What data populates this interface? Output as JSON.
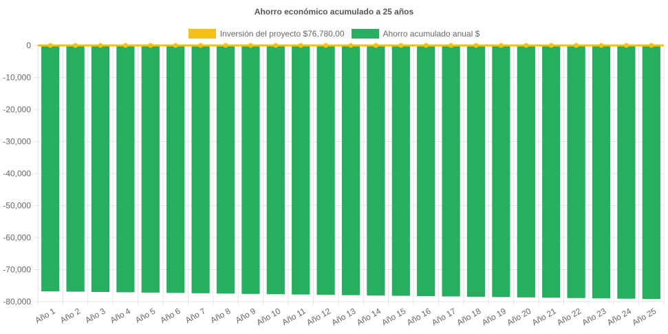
{
  "chart_data": {
    "type": "bar",
    "title": "Ahorro económico acumulado a 25 años",
    "xlabel": "",
    "ylabel": "",
    "ylim": [
      -80000,
      0
    ],
    "yticks": [
      0,
      -10000,
      -20000,
      -30000,
      -40000,
      -50000,
      -60000,
      -70000,
      -80000
    ],
    "ytick_labels": [
      "0",
      "-10,000",
      "-20,000",
      "-30,000",
      "-40,000",
      "-50,000",
      "-60,000",
      "-70,000",
      "-80,000"
    ],
    "grid": true,
    "legend_position": "top-center",
    "categories": [
      "Año 1",
      "Año 2",
      "Año 3",
      "Año 4",
      "Año 5",
      "Año 6",
      "Año 7",
      "Año 8",
      "Año 9",
      "Año 10",
      "Año 11",
      "Año 12",
      "Año 13",
      "Año 14",
      "Año 15",
      "Año 16",
      "Año 17",
      "Año 18",
      "Año 19",
      "Año 20",
      "Año 21",
      "Año 22",
      "Año 23",
      "Año 24",
      "Año 25"
    ],
    "series": [
      {
        "name": "Inversión del proyecto $76,780.00",
        "type": "line",
        "color": "#f5c010",
        "values": [
          0,
          0,
          0,
          0,
          0,
          0,
          0,
          0,
          0,
          0,
          0,
          0,
          0,
          0,
          0,
          0,
          0,
          0,
          0,
          0,
          0,
          0,
          0,
          0,
          0
        ]
      },
      {
        "name": "Ahorro acumulado anual $",
        "type": "bar",
        "color": "#27ae60",
        "values": [
          -76780,
          -76880,
          -76980,
          -77080,
          -77180,
          -77280,
          -77380,
          -77480,
          -77580,
          -77680,
          -77780,
          -77880,
          -77980,
          -78080,
          -78180,
          -78280,
          -78380,
          -78480,
          -78580,
          -78680,
          -78780,
          -78880,
          -78980,
          -79080,
          -79180
        ]
      }
    ]
  }
}
